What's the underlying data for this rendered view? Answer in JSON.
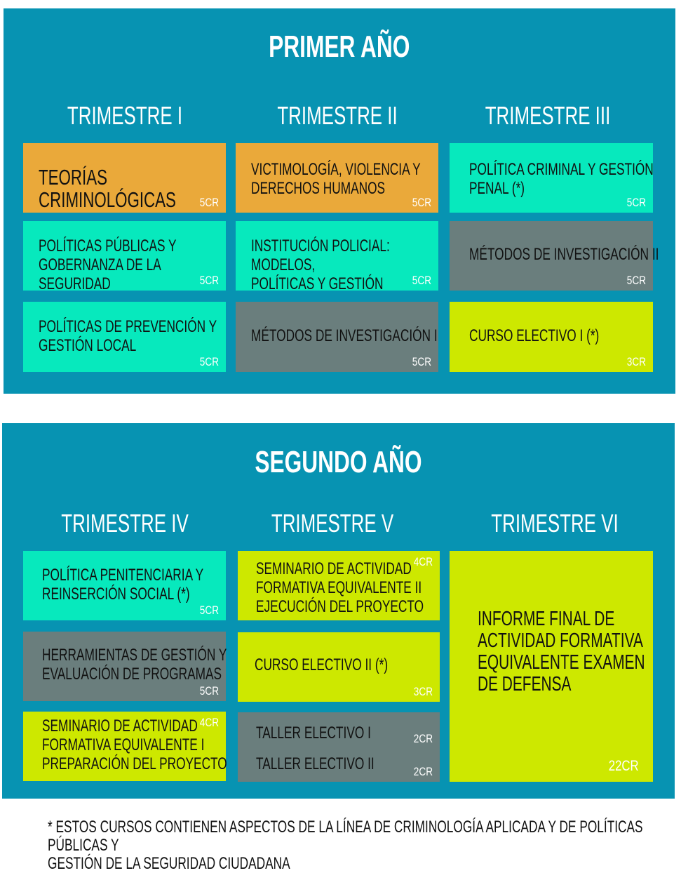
{
  "colors": {
    "panel": "#0793b2",
    "orange": "#eaa93a",
    "aqua": "#07e9bd",
    "gray": "#6a7e7d",
    "lime": "#cde800"
  },
  "year1": {
    "title": "PRIMER AÑO",
    "trimesters": [
      "TRIMESTRE I",
      "TRIMESTRE II",
      "TRIMESTRE III"
    ],
    "courses": [
      {
        "name": "TEORÍAS CRIMINOLÓGICAS",
        "credits": "5CR"
      },
      {
        "name": "POLÍTICAS PÚBLICAS Y\nGOBERNANZA DE LA SEGURIDAD",
        "credits": "5CR"
      },
      {
        "name": "POLÍTICAS DE PREVENCIÓN Y\nGESTIÓN LOCAL",
        "credits": "5CR"
      },
      {
        "name": "VICTIMOLOGÍA, VIOLENCIA Y\nDERECHOS HUMANOS",
        "credits": "5CR"
      },
      {
        "name": "INSTITUCIÓN POLICIAL: MODELOS,\nPOLÍTICAS Y GESTIÓN",
        "credits": "5CR"
      },
      {
        "name": "MÉTODOS DE INVESTIGACIÓN I",
        "credits": "5CR"
      },
      {
        "name": "POLÍTICA CRIMINAL Y GESTIÓN\nPENAL (*)",
        "credits": "5CR"
      },
      {
        "name": "MÉTODOS DE INVESTIGACIÓN II",
        "credits": "5CR"
      },
      {
        "name": "CURSO ELECTIVO I (*)",
        "credits": "3CR"
      }
    ]
  },
  "year2": {
    "title": "SEGUNDO AÑO",
    "trimesters": [
      "TRIMESTRE IV",
      "TRIMESTRE V",
      "TRIMESTRE VI"
    ],
    "courses": [
      {
        "name": "POLÍTICA PENITENCIARIA Y\nREINSERCIÓN SOCIAL (*)",
        "credits": "5CR"
      },
      {
        "name": "HERRAMIENTAS DE GESTIÓN Y\nEVALUACIÓN DE PROGRAMAS",
        "credits": "5CR"
      },
      {
        "name": "SEMINARIO DE ACTIVIDAD\nFORMATIVA EQUIVALENTE I\nPREPARACIÓN DEL PROYECTO",
        "credits": "4CR"
      },
      {
        "name": "SEMINARIO DE ACTIVIDAD\nFORMATIVA EQUIVALENTE II\nEJECUCIÓN DEL PROYECTO",
        "credits": "4CR"
      },
      {
        "name": "CURSO ELECTIVO II (*)",
        "credits": "3CR"
      },
      {
        "name": "TALLER ELECTIVO I",
        "credits": "2CR"
      },
      {
        "name": "TALLER ELECTIVO II",
        "credits": "2CR"
      },
      {
        "name": "INFORME FINAL DE\nACTIVIDAD FORMATIVA\nEQUIVALENTE EXAMEN\nDE DEFENSA",
        "credits": "22CR"
      }
    ]
  },
  "footnote": "* ESTOS CURSOS CONTIENEN ASPECTOS DE LA LÍNEA DE CRIMINOLOGÍA APLICADA Y DE POLÍTICAS PÚBLICAS Y\nGESTIÓN DE LA SEGURIDAD CIUDADANA"
}
